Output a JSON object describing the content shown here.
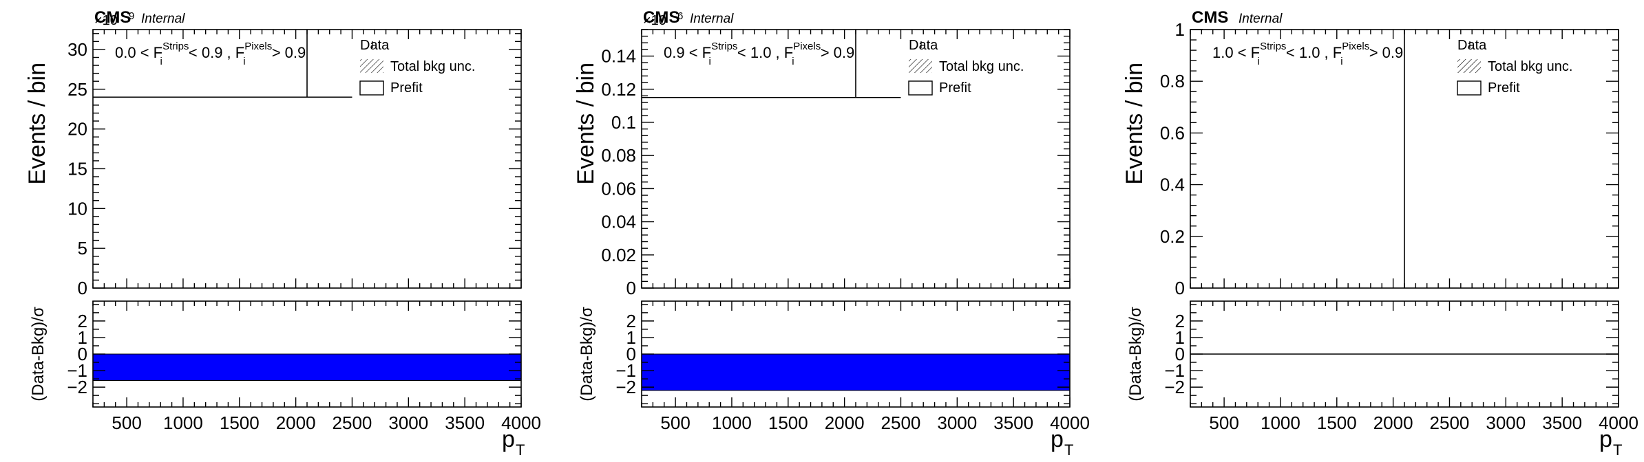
{
  "legend": {
    "data": "Data",
    "total_bkg": "Total bkg unc.",
    "prefit": "Prefit"
  },
  "cms_label": "CMS",
  "internal_label": "Internal",
  "colors": {
    "pull_band": "#0000ff",
    "axes": "#000000"
  },
  "chart_data": [
    {
      "type": "bar",
      "panel": "left",
      "ylabel": "Events / bin",
      "xlabel": "p",
      "xlabel_sub": "T",
      "exponent_label": "×10",
      "exponent_power": "9",
      "category": {
        "pre": "0.0 < F",
        "sub1": "i",
        "sup1": "Strips",
        "mid": " < 0.9 , F",
        "sub2": "i",
        "sup2": "Pixels",
        "post": " > 0.9"
      },
      "xlim": [
        200,
        4000
      ],
      "ylim": [
        0,
        32.5
      ],
      "yticks": [
        0,
        5,
        10,
        15,
        20,
        25,
        30
      ],
      "xticks": [
        500,
        1000,
        1500,
        2000,
        2500,
        3000,
        3500,
        4000
      ],
      "prefit_hist": {
        "x_edges": [
          200,
          2500
        ],
        "value": 24
      },
      "data_marker_x": 2100,
      "ratio": {
        "ylabel": "(Data-Bkg)/σ",
        "ylim": [
          -3.2,
          3.2
        ],
        "yticks": [
          -2,
          -1,
          0,
          1,
          2
        ],
        "band": [
          -1.6,
          0.0
        ]
      }
    },
    {
      "type": "bar",
      "panel": "middle",
      "ylabel": "Events / bin",
      "xlabel": "p",
      "xlabel_sub": "T",
      "exponent_label": "×10",
      "exponent_power": "6",
      "category": {
        "pre": "0.9 < F",
        "sub1": "i",
        "sup1": "Strips",
        "mid": " < 1.0 , F",
        "sub2": "i",
        "sup2": "Pixels",
        "post": " > 0.9"
      },
      "xlim": [
        200,
        4000
      ],
      "ylim": [
        0,
        0.156
      ],
      "yticks": [
        0,
        0.02,
        0.04,
        0.06,
        0.08,
        0.1,
        0.12,
        0.14
      ],
      "ytick_labels": [
        "0",
        "0.02",
        "0.04",
        "0.06",
        "0.08",
        "0.1",
        "0.12",
        "0.14"
      ],
      "xticks": [
        500,
        1000,
        1500,
        2000,
        2500,
        3000,
        3500,
        4000
      ],
      "prefit_hist": {
        "x_edges": [
          200,
          2500
        ],
        "value": 0.115
      },
      "data_marker_x": 2100,
      "ratio": {
        "ylabel": "(Data-Bkg)/σ",
        "ylim": [
          -3.2,
          3.2
        ],
        "yticks": [
          -2,
          -1,
          0,
          1,
          2
        ],
        "band": [
          -2.2,
          0.0
        ]
      }
    },
    {
      "type": "bar",
      "panel": "right",
      "ylabel": "Events / bin",
      "xlabel": "p",
      "xlabel_sub": "T",
      "exponent_label": "",
      "exponent_power": "",
      "category": {
        "pre": "1.0 < F",
        "sub1": "i",
        "sup1": "Strips",
        "mid": " < 1.0 , F",
        "sub2": "i",
        "sup2": "Pixels",
        "post": " > 0.9"
      },
      "xlim": [
        200,
        4000
      ],
      "ylim": [
        0,
        1
      ],
      "yticks": [
        0,
        0.2,
        0.4,
        0.6,
        0.8,
        1
      ],
      "ytick_labels": [
        "0",
        "0.2",
        "0.4",
        "0.6",
        "0.8",
        "1"
      ],
      "xticks": [
        500,
        1000,
        1500,
        2000,
        2500,
        3000,
        3500,
        4000
      ],
      "prefit_hist": null,
      "data_marker_x": 2100,
      "ratio": {
        "ylabel": "(Data-Bkg)/σ",
        "ylim": [
          -3.2,
          3.2
        ],
        "yticks": [
          -2,
          -1,
          0,
          1,
          2
        ],
        "band": null,
        "zero_line": 0
      }
    }
  ]
}
